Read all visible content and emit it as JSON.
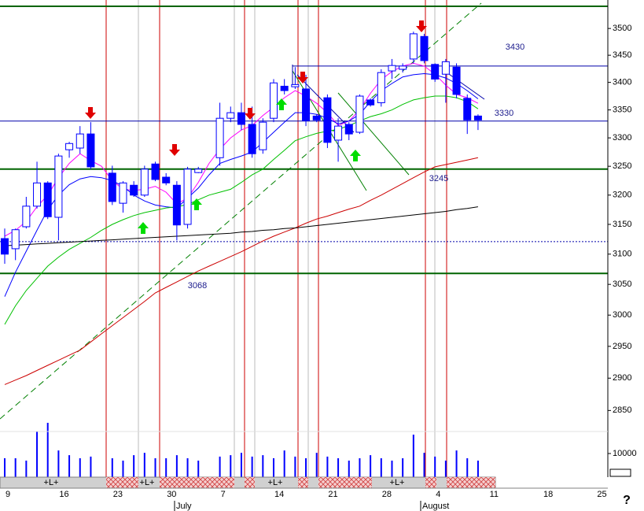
{
  "chart_data": {
    "type": "candlestick",
    "log_scale": true,
    "ylim": [
      2818,
      3554
    ],
    "yticks": [
      3500,
      3450,
      3400,
      3350,
      3300,
      3250,
      3200,
      3150,
      3100,
      3050,
      3000,
      2950,
      2900,
      2850
    ],
    "categories": [
      "9",
      null,
      null,
      null,
      null,
      "16",
      null,
      null,
      null,
      null,
      "23",
      null,
      null,
      null,
      null,
      "30",
      null,
      null,
      null,
      null,
      "7",
      null,
      null,
      null,
      null,
      "14",
      null,
      null,
      null,
      null,
      "21",
      null,
      null,
      null,
      null,
      "28",
      null,
      null,
      null,
      null,
      "4",
      null,
      null,
      null,
      null,
      "11",
      null,
      null,
      null,
      null,
      "18",
      null,
      null,
      null,
      null,
      "25"
    ],
    "months": [
      "July",
      "August"
    ],
    "up_color": "#ffffff",
    "down_color": "#0000ff",
    "outline_color": "#0000ff",
    "open": [
      3126,
      3109,
      3146,
      3181,
      3221,
      3162,
      3279,
      3282,
      3307,
      null,
      3238,
      3186,
      3217,
      3200,
      3254,
      3231,
      3217,
      3150,
      3239,
      null,
      3265,
      3335,
      3345,
      3324,
      3279,
      3335,
      3393,
      3392,
      3388,
      3339,
      3372,
      3296,
      3324,
      3310,
      3368,
      3363,
      3421,
      3424,
      3443,
      3485,
      3433,
      3415,
      3428,
      3371,
      3339,
      null,
      null,
      null,
      null,
      null,
      null,
      null,
      null,
      null,
      null,
      null
    ],
    "high": [
      3143,
      3143,
      3197,
      3258,
      3224,
      3272,
      3293,
      3321,
      3328,
      null,
      3251,
      3224,
      3224,
      3251,
      3258,
      3238,
      3224,
      3249,
      3249,
      null,
      3363,
      3356,
      3363,
      3356,
      3335,
      3406,
      3406,
      3428,
      3414,
      3342,
      3378,
      3335,
      3328,
      3378,
      3371,
      3424,
      3443,
      3435,
      3494,
      3490,
      3435,
      3443,
      3435,
      3378,
      3342,
      null,
      null,
      null,
      null,
      null,
      null,
      null,
      null,
      null,
      null,
      null
    ],
    "low": [
      3084,
      3090,
      3143,
      3177,
      3159,
      3123,
      3265,
      3272,
      3245,
      null,
      3183,
      3170,
      3197,
      3197,
      3224,
      3217,
      3123,
      3143,
      3238,
      null,
      3251,
      3328,
      3314,
      3265,
      3272,
      3328,
      3378,
      3388,
      3321,
      3328,
      3282,
      3258,
      3296,
      3307,
      3356,
      3356,
      3406,
      3418,
      3435,
      3435,
      3401,
      3363,
      3371,
      3307,
      3314,
      null,
      null,
      null,
      null,
      null,
      null,
      null,
      null,
      null,
      null,
      null
    ],
    "close": [
      3100,
      3141,
      3181,
      3221,
      3163,
      3268,
      3290,
      3307,
      3249,
      null,
      3189,
      3221,
      3200,
      3245,
      3227,
      3221,
      3149,
      3245,
      3245,
      null,
      3335,
      3345,
      3324,
      3272,
      3328,
      3399,
      3385,
      3396,
      3331,
      3332,
      3292,
      3321,
      3307,
      3375,
      3359,
      3418,
      3431,
      3430,
      3490,
      3440,
      3406,
      3438,
      3378,
      3332,
      3332,
      null,
      null,
      null,
      null,
      null,
      null,
      null,
      null,
      null,
      null,
      null
    ],
    "lines": [
      {
        "color": "#ff00ff",
        "values": [
          3130,
          3140,
          3155,
          3180,
          3200,
          3230,
          3255,
          3272,
          3260,
          3250,
          3225,
          3210,
          3208,
          3210,
          3215,
          3205,
          3185,
          3195,
          3222,
          3255,
          3280,
          3300,
          3314,
          3322,
          3340,
          3355,
          3372,
          3385,
          3375,
          3362,
          3345,
          3322,
          3330,
          3350,
          3380,
          3405,
          3420,
          3430,
          3435,
          3430,
          3415,
          3395,
          3378,
          3372,
          3362,
          null,
          null,
          null,
          null,
          null,
          null,
          null,
          null,
          null,
          null,
          null
        ]
      },
      {
        "color": "#0000ff",
        "values": [
          3030,
          3070,
          3105,
          3140,
          3175,
          3200,
          3218,
          3228,
          3232,
          3230,
          3225,
          3215,
          3200,
          3190,
          3183,
          3180,
          3178,
          3195,
          3212,
          3235,
          3255,
          3262,
          3268,
          3275,
          3292,
          3310,
          3328,
          3345,
          3345,
          3342,
          3335,
          3325,
          3330,
          3342,
          3365,
          3385,
          3398,
          3410,
          3414,
          3416,
          3414,
          3408,
          3398,
          3385,
          3370,
          null,
          null,
          null,
          null,
          null,
          null,
          null,
          null,
          null,
          null,
          null
        ]
      },
      {
        "color": "#00c000",
        "values": [
          2985,
          3015,
          3040,
          3060,
          3080,
          3095,
          3108,
          3118,
          3128,
          3140,
          3150,
          3158,
          3165,
          3170,
          3174,
          3178,
          3180,
          3184,
          3192,
          3200,
          3205,
          3210,
          3222,
          3235,
          3245,
          3262,
          3278,
          3295,
          3302,
          3308,
          3312,
          3315,
          3322,
          3330,
          3338,
          3343,
          3350,
          3360,
          3368,
          3372,
          3375,
          3375,
          3372,
          3365,
          3352,
          null,
          null,
          null,
          null,
          null,
          null,
          null,
          null,
          null,
          null,
          null
        ]
      },
      {
        "color": "#cc0000",
        "values": [
          2890,
          2897,
          2904,
          2912,
          2920,
          2928,
          2936,
          2944,
          2957,
          2970,
          2983,
          2996,
          3009,
          3022,
          3036,
          3045,
          3054,
          3063,
          3072,
          3080,
          3088,
          3096,
          3104,
          3113,
          3122,
          3130,
          3137,
          3144,
          3152,
          3159,
          3164,
          3170,
          3176,
          3181,
          3191,
          3200,
          3210,
          3220,
          3230,
          3240,
          3249,
          3253,
          3257,
          3261,
          3265,
          null,
          null,
          null,
          null,
          null,
          null,
          null,
          null,
          null,
          null,
          null
        ]
      },
      {
        "color": "#000000",
        "values": [
          3114,
          3115,
          3116,
          3117,
          3118,
          3119,
          3120,
          3121,
          3122,
          3123,
          3124,
          3125,
          3126,
          3127,
          3128,
          3129,
          3130,
          3131,
          3132,
          3133,
          3134,
          3135,
          3137,
          3138,
          3140,
          3141,
          3143,
          3144,
          3146,
          3148,
          3150,
          3152,
          3154,
          3156,
          3158,
          3160,
          3162,
          3164,
          3166,
          3168,
          3170,
          3172,
          3175,
          3177,
          3180,
          null,
          null,
          null,
          null,
          null,
          null,
          null,
          null,
          null,
          null,
          null
        ]
      }
    ],
    "hlines": [
      {
        "value": 3542,
        "color": "#006400",
        "width": 2
      },
      {
        "value": 3430,
        "label": "3430",
        "color": "#0000aa",
        "width": 1
      },
      {
        "value": 3330,
        "label": "3330",
        "color": "#0000aa",
        "width": 1
      },
      {
        "value": 3245,
        "label": "3245",
        "color": "#006400",
        "width": 2
      },
      {
        "value": 3068,
        "label": "3068",
        "color": "#006400",
        "width": 2
      },
      {
        "value": 3121,
        "color": "#0000aa",
        "width": 1,
        "dotted": true
      }
    ],
    "volume": {
      "color": "#0000ff",
      "ylim": [
        0,
        25000
      ],
      "yticks": [
        10000
      ],
      "values": [
        8000,
        8000,
        7000,
        19300,
        23000,
        11300,
        9300,
        8000,
        8700,
        null,
        8000,
        7000,
        9300,
        10300,
        8000,
        8000,
        9300,
        8000,
        7000,
        null,
        8700,
        9300,
        10300,
        8700,
        9300,
        8000,
        11300,
        8700,
        8000,
        10300,
        8700,
        8000,
        7000,
        8000,
        9300,
        8000,
        7000,
        8000,
        18000,
        10300,
        8700,
        7000,
        11300,
        8000,
        7000,
        null,
        null,
        null,
        null,
        null,
        null,
        null,
        null,
        null,
        null,
        null
      ]
    },
    "strip_labels": [
      "+L+",
      "+L+",
      "+L+",
      "+L+"
    ],
    "help_mark": "?"
  }
}
